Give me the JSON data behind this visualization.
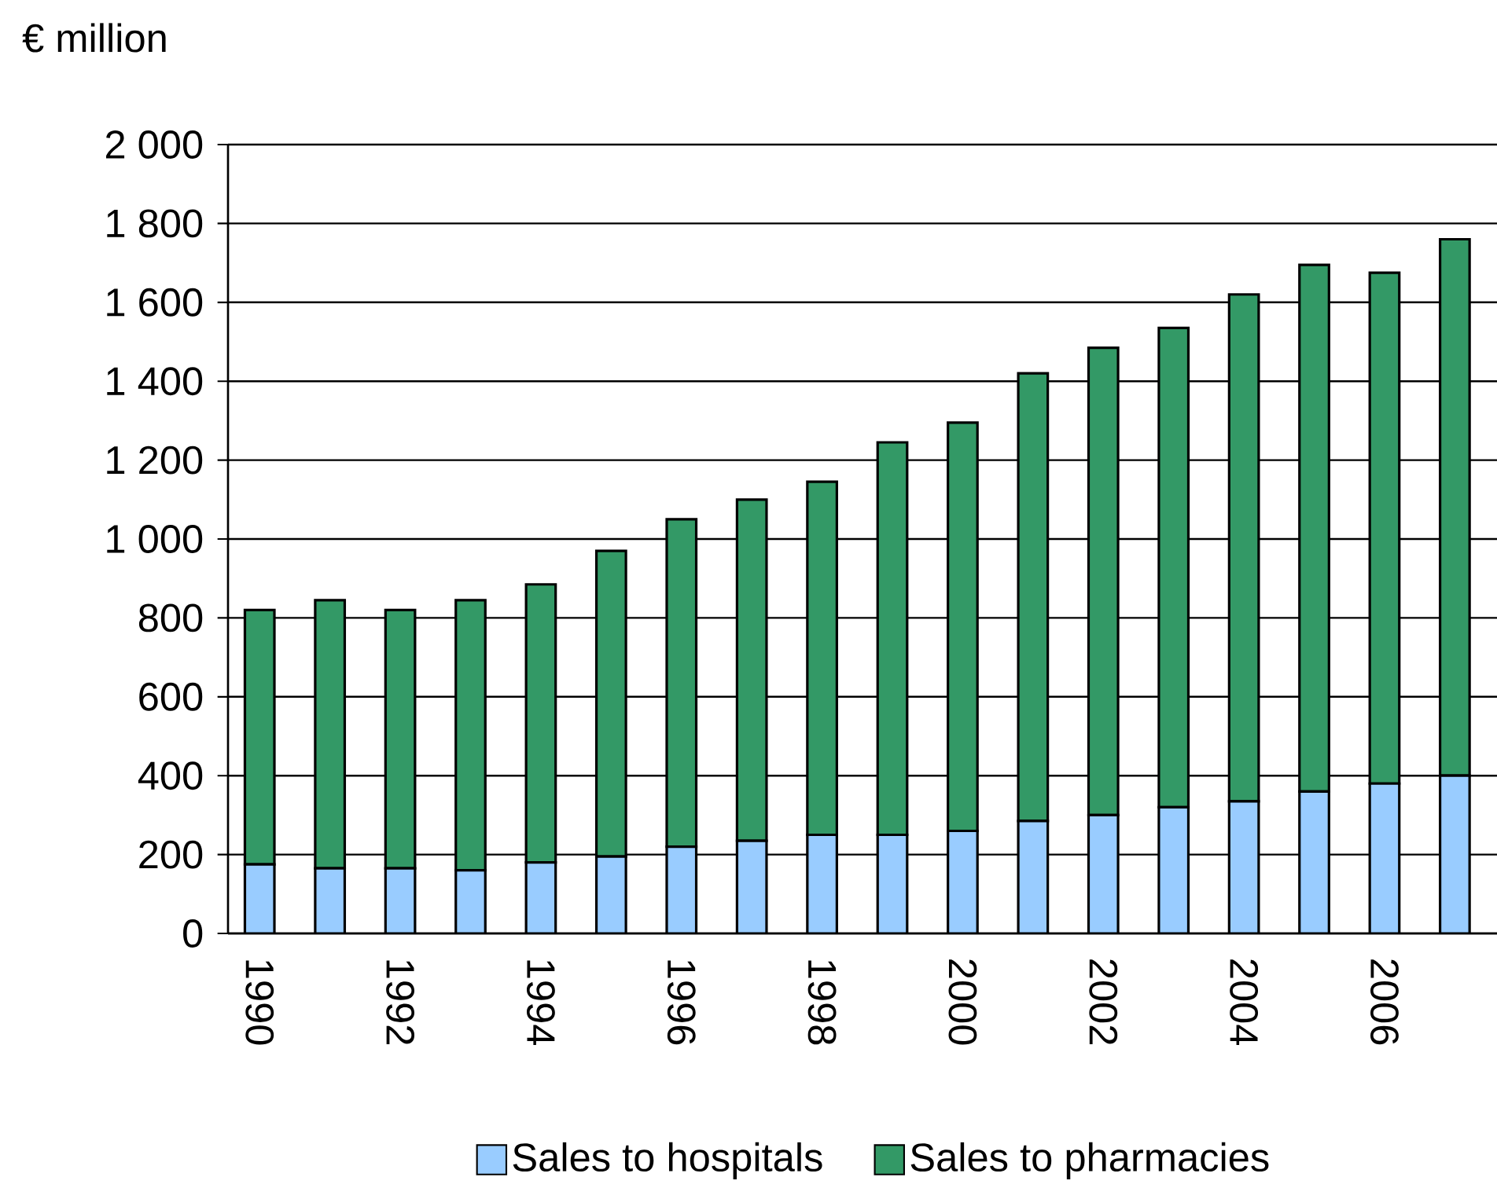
{
  "chart_data": {
    "type": "bar",
    "stacked": true,
    "ylabel": "€ million",
    "categories": [
      "1990",
      null,
      "1992",
      null,
      "1994",
      null,
      "1996",
      null,
      "1998",
      null,
      "2000",
      null,
      "2002",
      null,
      "2004",
      null,
      "2006",
      null
    ],
    "series": [
      {
        "name": "Sales to hospitals",
        "color": "#99ccff",
        "values": [
          175,
          165,
          165,
          160,
          180,
          195,
          220,
          235,
          250,
          250,
          260,
          285,
          300,
          320,
          335,
          360,
          380,
          400
        ]
      },
      {
        "name": "Sales to pharmacies",
        "color": "#339966",
        "values": [
          645,
          680,
          655,
          685,
          705,
          775,
          830,
          865,
          895,
          995,
          1035,
          1135,
          1185,
          1215,
          1285,
          1335,
          1295,
          1360
        ]
      }
    ],
    "ylim": [
      0,
      2000
    ],
    "yticks": [
      0,
      200,
      400,
      600,
      800,
      {
        "value": 1000,
        "label": "1 000"
      },
      {
        "value": 1200,
        "label": "1 200"
      },
      {
        "value": 1400,
        "label": "1 400"
      },
      {
        "value": 1600,
        "label": "1 600"
      },
      {
        "value": 1800,
        "label": "1 800"
      },
      {
        "value": 2000,
        "label": "2 000"
      }
    ],
    "grid": "y",
    "legend": "bottom"
  }
}
